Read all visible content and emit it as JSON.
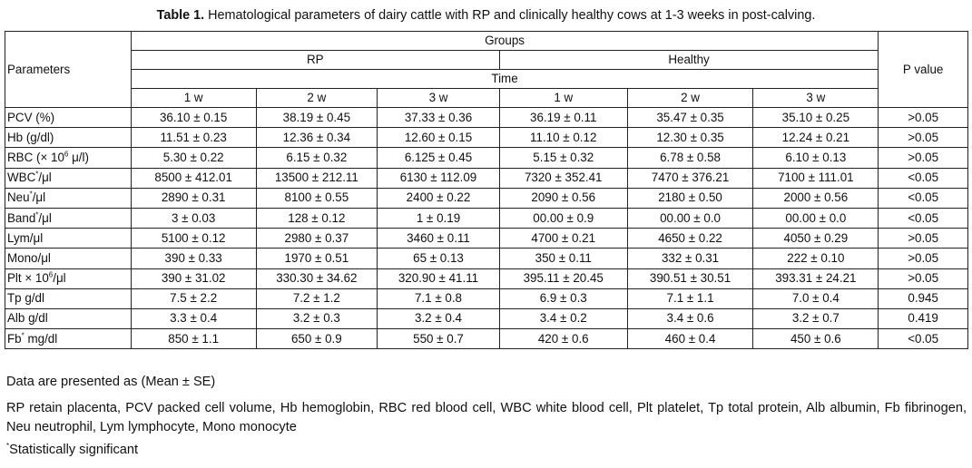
{
  "caption": {
    "label": "Table 1.",
    "text": " Hematological parameters of dairy cattle with RP and clinically healthy cows at 1-3 weeks in post-calving."
  },
  "header": {
    "parameters": "Parameters",
    "groups": "Groups",
    "rp": "RP",
    "healthy": "Healthy",
    "time": "Time",
    "pvalue": "P value",
    "weeks": [
      "1 w",
      "2 w",
      "3 w",
      "1 w",
      "2 w",
      "3 w"
    ]
  },
  "rows": [
    {
      "name": "PCV (%)",
      "sup": "",
      "suffix": "",
      "values": [
        "36.10 ± 0.15",
        "38.19 ± 0.45",
        "37.33 ± 0.36",
        "36.19 ± 0.11",
        "35.47 ± 0.35",
        "35.10 ± 0.25"
      ],
      "p": ">0.05"
    },
    {
      "name": "Hb (g/dl)",
      "sup": "",
      "suffix": "",
      "values": [
        "11.51 ± 0.23",
        "12.36 ± 0.34",
        "12.60 ± 0.15",
        "11.10 ± 0.12",
        "12.30 ± 0.35",
        "12.24 ± 0.21"
      ],
      "p": ">0.05"
    },
    {
      "name": "RBC (× 10",
      "sup": "6",
      "suffix": " μ/l)",
      "values": [
        "5.30 ± 0.22",
        "6.15 ± 0.32",
        "6.125 ± 0.45",
        "5.15 ± 0.32",
        "6.78 ± 0.58",
        "6.10 ± 0.13"
      ],
      "p": ">0.05"
    },
    {
      "name": "WBC",
      "sup": "*",
      "suffix": "/μl",
      "values": [
        "8500 ± 412.01",
        "13500 ± 212.11",
        "6130 ± 112.09",
        "7320 ± 352.41",
        "7470 ± 376.21",
        "7100 ± 111.01"
      ],
      "p": "<0.05"
    },
    {
      "name": "Neu",
      "sup": "*",
      "suffix": "/μl",
      "values": [
        "2890 ± 0.31",
        "8100 ± 0.55",
        "2400 ± 0.22",
        "2090 ± 0.56",
        "2180 ± 0.50",
        "2000 ± 0.56"
      ],
      "p": "<0.05"
    },
    {
      "name": "Band",
      "sup": "*",
      "suffix": "/μl",
      "values": [
        "3 ± 0.03",
        "128 ± 0.12",
        "1 ± 0.19",
        "00.00 ± 0.9",
        "00.00 ± 0.0",
        "00.00 ± 0.0"
      ],
      "p": "<0.05"
    },
    {
      "name": "Lym/μl",
      "sup": "",
      "suffix": "",
      "values": [
        "5100 ± 0.12",
        "2980 ± 0.37",
        "3460 ± 0.11",
        "4700 ± 0.21",
        "4650 ± 0.22",
        "4050 ± 0.29"
      ],
      "p": ">0.05"
    },
    {
      "name": "Mono/μl",
      "sup": "",
      "suffix": "",
      "values": [
        "390 ± 0.33",
        "1970 ± 0.51",
        "65 ± 0.13",
        "350 ± 0.11",
        "332 ± 0.31",
        "222 ± 0.10"
      ],
      "p": ">0.05"
    },
    {
      "name": "Plt × 10",
      "sup": "6",
      "suffix": "/μl",
      "values": [
        "390 ± 31.02",
        "330.30 ± 34.62",
        "320.90 ± 41.11",
        "395.11 ± 20.45",
        "390.51 ± 30.51",
        "393.31 ± 24.21"
      ],
      "p": ">0.05"
    },
    {
      "name": "Tp g/dl",
      "sup": "",
      "suffix": "",
      "values": [
        "7.5 ± 2.2",
        "7.2 ± 1.2",
        "7.1 ± 0.8",
        "6.9 ± 0.3",
        "7.1 ± 1.1",
        "7.0 ± 0.4"
      ],
      "p": "0.945"
    },
    {
      "name": "Alb g/dl",
      "sup": "",
      "suffix": "",
      "values": [
        "3.3 ± 0.4",
        "3.2 ± 0.3",
        "3.2 ± 0.4",
        "3.4 ± 0.2",
        "3.4 ± 0.6",
        "3.2 ± 0.7"
      ],
      "p": "0.419"
    },
    {
      "name": "Fb",
      "sup": "*",
      "suffix": " mg/dl",
      "values": [
        "850 ± 1.1",
        "650 ± 0.9",
        "550 ± 0.7",
        "420 ± 0.6",
        "460 ± 0.4",
        "450 ± 0.6"
      ],
      "p": "<0.05"
    }
  ],
  "notes": {
    "presented": "Data are presented as (Mean ± SE)",
    "abbreviations": "RP retain placenta, PCV packed cell volume, Hb hemoglobin, RBC red blood cell, WBC white blood cell, Plt platelet, Tp total protein, Alb albumin, Fb fibrinogen, Neu neutrophil, Lym lymphocyte, Mono monocyte",
    "significant_mark": "*",
    "significant_text": "Statistically significant"
  }
}
